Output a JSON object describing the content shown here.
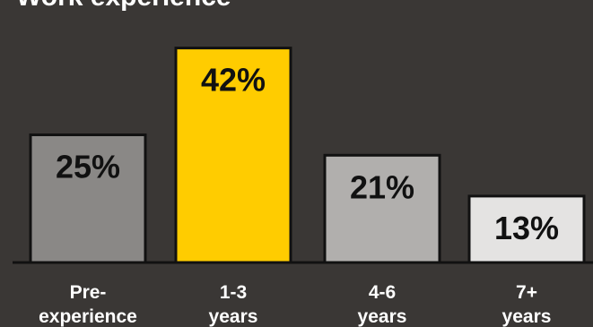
{
  "chart_data": {
    "type": "bar",
    "title": "Work experience",
    "categories": [
      [
        "Pre-",
        "experience"
      ],
      [
        "1-3",
        "years"
      ],
      [
        "4-6",
        "years"
      ],
      [
        "7+",
        "years"
      ]
    ],
    "values": [
      25,
      42,
      21,
      13
    ],
    "value_labels": [
      "25%",
      "42%",
      "21%",
      "13%"
    ],
    "ylim": [
      0,
      50
    ],
    "unit": "%",
    "grid": false,
    "colors": {
      "background": "#3a3735",
      "bars": [
        "#8a8886",
        "#ffcc00",
        "#b1afad",
        "#e4e3e2"
      ],
      "bar_outline": "#111111",
      "axis": "#111111",
      "label_text": "#111111",
      "category_text": "#ffffff"
    }
  }
}
